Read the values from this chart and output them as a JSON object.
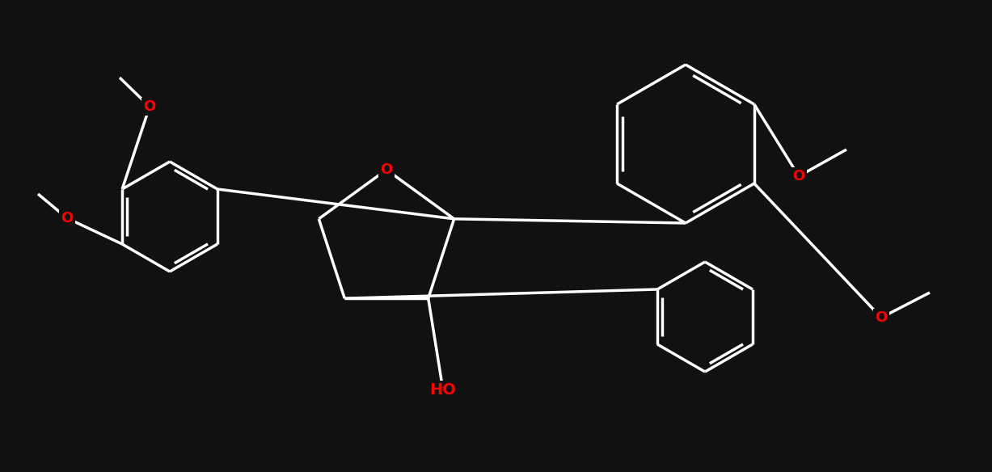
{
  "bg": "#111111",
  "bond_color": "white",
  "o_color": "red",
  "ho_color": "red",
  "lw": 2.5,
  "fs": 14,
  "figsize": [
    12.27,
    5.84
  ],
  "dpi": 100,
  "xlim": [
    0,
    1227
  ],
  "ylim": [
    0,
    584
  ]
}
